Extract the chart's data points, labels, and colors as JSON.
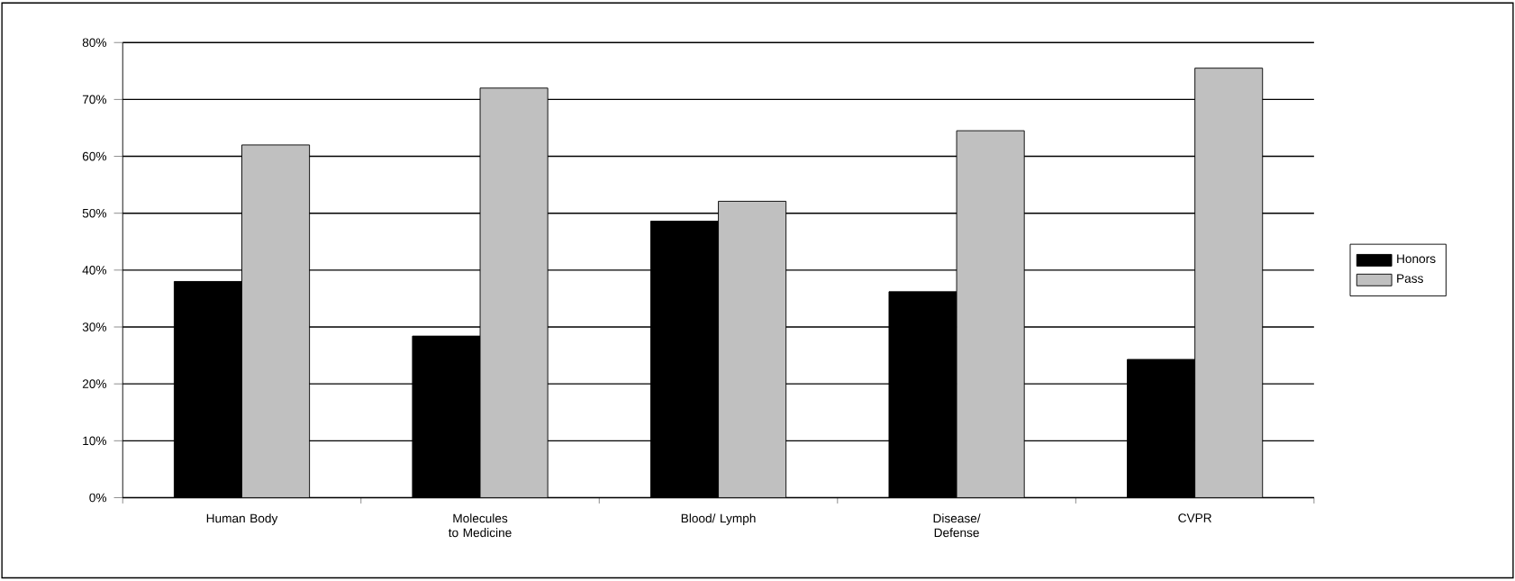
{
  "chart_data": {
    "type": "bar",
    "categories": [
      "Human Body",
      "Molecules to Medicine",
      "Blood/ Lymph",
      "Disease/ Defense",
      "CVPR"
    ],
    "series": [
      {
        "name": "Honors",
        "color": "#000000",
        "values": [
          38,
          28.4,
          48.6,
          36.2,
          24.3
        ]
      },
      {
        "name": "Pass",
        "color": "#c0c0c0",
        "values": [
          62,
          72,
          52.1,
          64.5,
          75.5
        ]
      }
    ],
    "ylim": [
      0,
      80
    ],
    "yticks": [
      {
        "value": 0,
        "label": "0%"
      },
      {
        "value": 10,
        "label": "10%"
      },
      {
        "value": 20,
        "label": "20%"
      },
      {
        "value": 30,
        "label": "30%"
      },
      {
        "value": 40,
        "label": "40%"
      },
      {
        "value": 50,
        "label": "50%"
      },
      {
        "value": 60,
        "label": "60%"
      },
      {
        "value": 70,
        "label": "70%"
      },
      {
        "value": 80,
        "label": "80%"
      }
    ],
    "grid": "y",
    "legend": "right"
  }
}
